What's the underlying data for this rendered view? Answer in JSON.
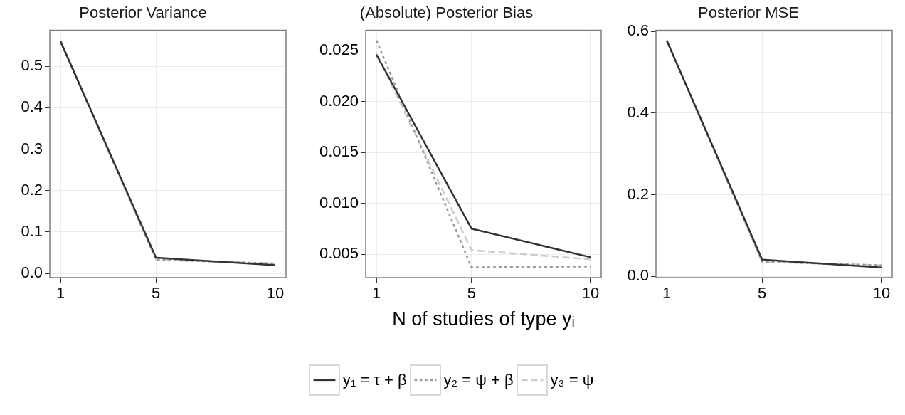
{
  "chart_data": [
    {
      "type": "line",
      "title": "Posterior Variance",
      "x": [
        1,
        5,
        10
      ],
      "xlim": [
        0.55,
        10.45
      ],
      "xticks": [
        1,
        5,
        10
      ],
      "ylim": [
        -0.01,
        0.587
      ],
      "yticks": [
        {
          "value": 0,
          "label": "0.0"
        },
        0.1,
        0.2,
        0.3,
        0.4,
        0.5
      ],
      "grid": true,
      "series": [
        {
          "color": "#333333",
          "line_style": "solid",
          "values": [
            0.56,
            0.038,
            0.02
          ]
        },
        {
          "color": "#999999",
          "line_style": "dotted",
          "values": [
            0.56,
            0.033,
            0.024
          ]
        },
        {
          "color": "#cccccc",
          "line_style": "dashed",
          "values": [
            0.56,
            0.034,
            0.024
          ]
        }
      ]
    },
    {
      "type": "line",
      "title": "(Absolute) Posterior Bias",
      "xlabel": "N of studies of type yᵢ",
      "x": [
        1,
        5,
        10
      ],
      "xlim": [
        0.55,
        10.45
      ],
      "xticks": [
        1,
        5,
        10
      ],
      "ylim": [
        0.0027,
        0.027
      ],
      "yticks": [
        0.005,
        {
          "value": 0.01,
          "label": "0.010"
        },
        0.015,
        {
          "value": 0.02,
          "label": "0.020"
        },
        0.025
      ],
      "grid": true,
      "legend": "bottom",
      "series": [
        {
          "name": "y₁ = τ + β",
          "color": "#333333",
          "line_style": "solid",
          "values": [
            0.0246,
            0.0075,
            0.0047
          ]
        },
        {
          "name": "y₂ = ψ + β",
          "color": "#999999",
          "line_style": "dotted",
          "values": [
            0.026,
            0.0037,
            0.0038
          ]
        },
        {
          "name": "y₃ = ψ",
          "color": "#cccccc",
          "line_style": "dashed",
          "values": [
            0.0247,
            0.0054,
            0.0045
          ]
        }
      ]
    },
    {
      "type": "line",
      "title": "Posterior MSE",
      "x": [
        1,
        5,
        10
      ],
      "xlim": [
        0.55,
        10.45
      ],
      "xticks": [
        1,
        5,
        10
      ],
      "ylim": [
        -0.003,
        0.603
      ],
      "yticks": [
        {
          "value": 0,
          "label": "0.0"
        },
        0.2,
        0.4,
        0.6
      ],
      "grid": true,
      "series": [
        {
          "color": "#333333",
          "line_style": "solid",
          "values": [
            0.578,
            0.041,
            0.022
          ]
        },
        {
          "color": "#999999",
          "line_style": "dotted",
          "values": [
            0.578,
            0.036,
            0.027
          ]
        },
        {
          "color": "#cccccc",
          "line_style": "dashed",
          "values": [
            0.578,
            0.036,
            0.027
          ]
        }
      ]
    }
  ]
}
